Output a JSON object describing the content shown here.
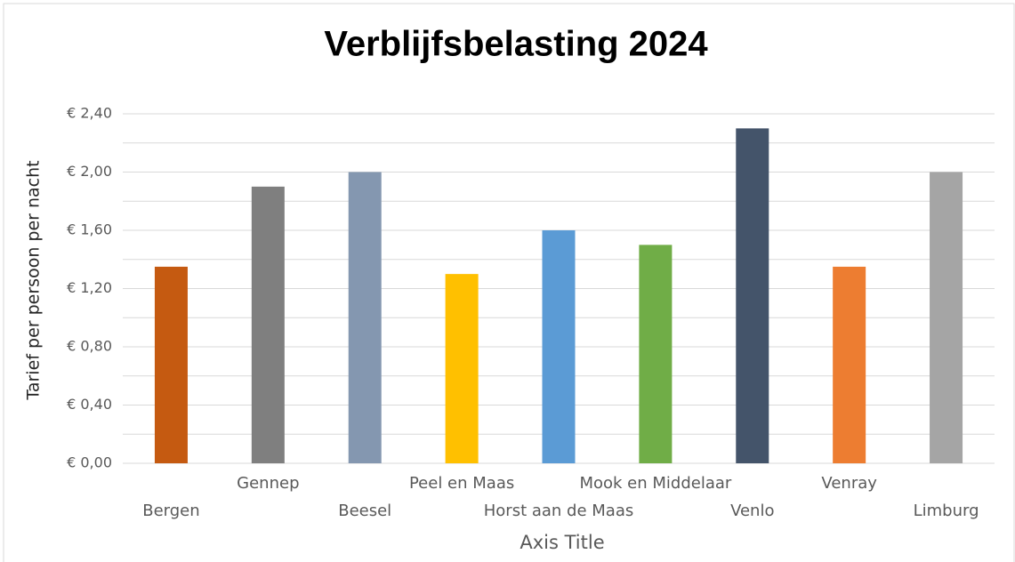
{
  "chart_data": {
    "type": "bar",
    "title": "Verblijfsbelasting 2024",
    "x_label": "Axis Title",
    "y_label": "Tarief per persoon per nacht",
    "categories": [
      "Bergen",
      "Gennep",
      "Beesel",
      "Peel en Maas",
      "Horst aan de Maas",
      "Mook en Middelaar",
      "Venlo",
      "Venray",
      "Limburg"
    ],
    "values": [
      1.35,
      1.9,
      2.0,
      1.3,
      1.6,
      1.5,
      2.3,
      1.35,
      2.0
    ],
    "colors": [
      "#c55a11",
      "#7f7f7f",
      "#8497b0",
      "#ffc000",
      "#5b9bd5",
      "#70ad47",
      "#44546a",
      "#ed7d31",
      "#a5a5a5"
    ],
    "ylim": [
      0,
      2.4
    ],
    "yticks": [
      {
        "value": 0,
        "label": "€ 0,00"
      },
      {
        "value": 0.4,
        "label": "€ 0,40"
      },
      {
        "value": 0.8,
        "label": "€ 0,80"
      },
      {
        "value": 1.2,
        "label": "€ 1,20"
      },
      {
        "value": 1.6,
        "label": "€ 1,60"
      },
      {
        "value": 2.0,
        "label": "€ 2,00"
      },
      {
        "value": 2.4,
        "label": "€ 2,40"
      }
    ],
    "minor_yticks": [
      0.2,
      0.6,
      1.0,
      1.4,
      1.8,
      2.2
    ],
    "grid": true
  }
}
